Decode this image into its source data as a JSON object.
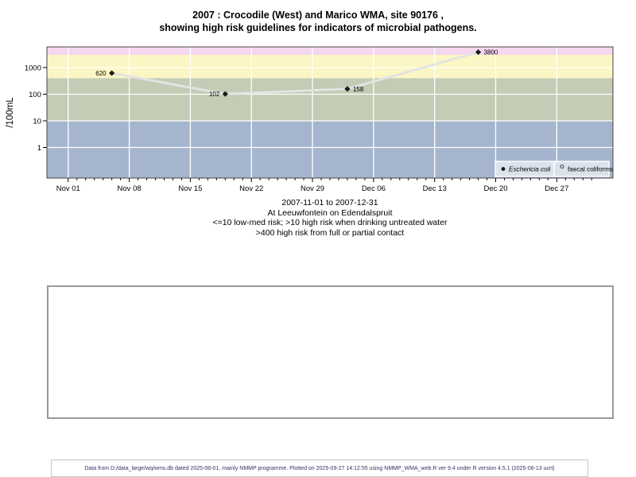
{
  "title": {
    "line1": "2007 : Crocodile (West) and Marico WMA, site 90176 ,",
    "line2": "showing high risk guidelines for indicators of microbial pathogens."
  },
  "chart_data": {
    "type": "line",
    "title": "2007 : Crocodile (West) and Marico WMA, site 90176 , showing high risk guidelines for indicators of microbial pathogens.",
    "x_axis": {
      "start": "2007-11-01",
      "end": "2007-12-31",
      "tick_labels": [
        "Nov 01",
        "Nov 08",
        "Nov 15",
        "Nov 22",
        "Nov 29",
        "Dec 06",
        "Dec 13",
        "Dec 20",
        "Dec 27"
      ],
      "major_tick_interval_days": 7,
      "minor_tick_interval_days": 1
    },
    "y_axis": {
      "label": "/100mL",
      "scale": "log10",
      "ticks": [
        1,
        10,
        100,
        1000
      ],
      "approx_range": [
        0.07,
        6500
      ]
    },
    "grid": "white lines on colored bands",
    "guideline_bands": [
      {
        "name": "very-high-risk",
        "from": 3000,
        "to": 6500,
        "color": "#f6d7f0"
      },
      {
        "name": "high-risk-contact",
        "from": 400,
        "to": 3000,
        "color": "#fbf6c3"
      },
      {
        "name": "high-risk-drinking",
        "from": 10,
        "to": 400,
        "color": "#c3ccb5"
      },
      {
        "name": "low-med-risk",
        "from": 0.07,
        "to": 10,
        "color": "#a6b5ce"
      }
    ],
    "series": [
      {
        "name": "Eschericia coli",
        "marker": "filled-diamond",
        "marker_color": "#1a1a1a",
        "line_color": "#e3e3e3",
        "points": [
          {
            "date": "2007-11-06",
            "day": 5,
            "value": 620,
            "label": "620",
            "label_side": "left"
          },
          {
            "date": "2007-11-19",
            "day": 18,
            "value": 102,
            "label": "102",
            "label_side": "left"
          },
          {
            "date": "2007-12-03",
            "day": 32,
            "value": 158,
            "label": "158",
            "label_side": "right"
          },
          {
            "date": "2007-12-18",
            "day": 47,
            "value": 3800,
            "label": "3800",
            "label_side": "right"
          }
        ]
      },
      {
        "name": "faecal coliforms",
        "marker": "open-circle",
        "marker_color": "#444444",
        "line_color": "#e3e3e3",
        "points": []
      }
    ],
    "legend": {
      "position": "bottom-right-inside",
      "background": "#dbe2eb",
      "entries": [
        {
          "label": "Eschericia coli",
          "marker": "filled-circle",
          "italic": true
        },
        {
          "label": "faecal coliforms",
          "marker": "open-circle",
          "italic": false
        }
      ]
    }
  },
  "caption": {
    "lines": [
      "2007-11-01 to 2007-12-31",
      "At Leeuwfontein on Edendalspruit",
      "<=10 low-med risk; >10 high risk when drinking untreated water",
      ">400 high risk from full or partial contact"
    ]
  },
  "footer": {
    "text": "Data from D:/data_large/wq/wms.db dated 2025-08-01, mainly NMMP programme. Plotted on 2025-09-27 14:12:55 using NMMP_WMA_web.R ver 9.4 under R version 4.5.1 (2025-06-13 ucrt)"
  },
  "colors": {
    "band_pink": "#f6d7f0",
    "band_yellow": "#fbf6c3",
    "band_green": "#c3ccb5",
    "band_blue": "#a6b5ce",
    "gridline": "#ffffff",
    "data_line": "#e3e3e3",
    "marker": "#1a1a1a",
    "plot_border": "#444444",
    "legend_bg": "#dbe2eb",
    "footer_text": "#333366"
  }
}
